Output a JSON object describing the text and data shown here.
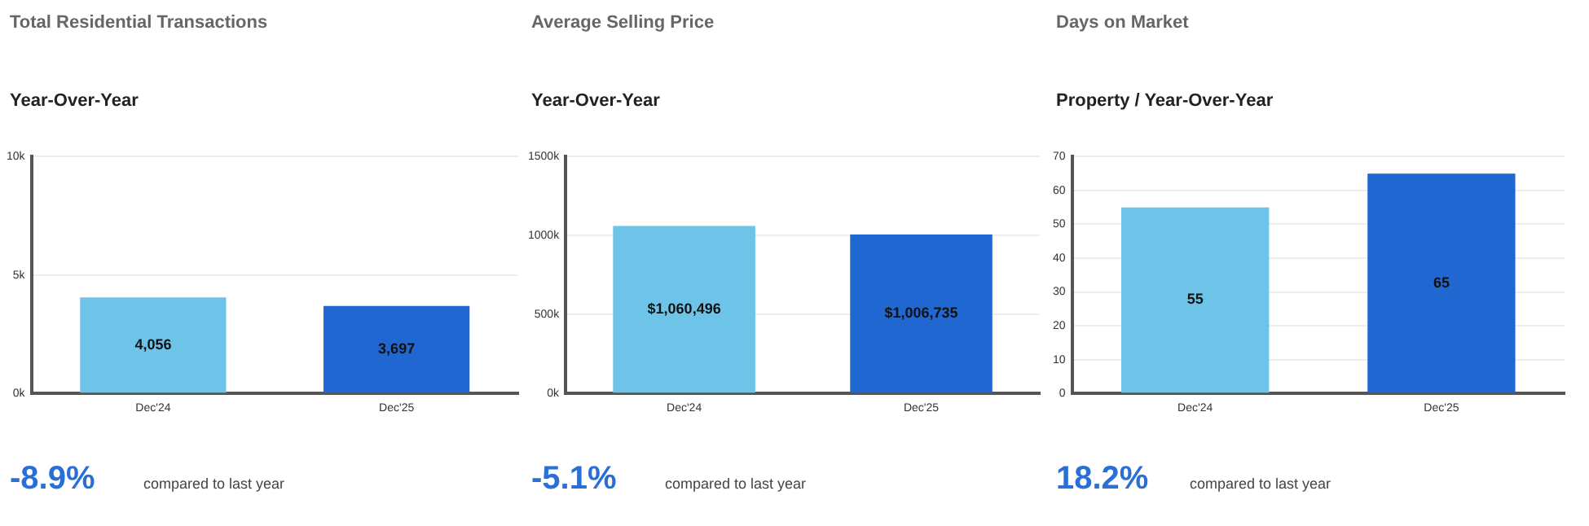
{
  "chart_data": [
    {
      "type": "bar",
      "title": "Total Residential Transactions",
      "subtitle": "Year-Over-Year",
      "categories": [
        "Dec'24",
        "Dec'25"
      ],
      "values": [
        4056,
        3697
      ],
      "colors": [
        "#6ec3e8",
        "#2167d1"
      ],
      "value_labels": [
        "4,056",
        "3,697"
      ],
      "ylim": [
        0,
        10000
      ],
      "yticks": [
        {
          "value": 0,
          "label": "0k"
        },
        {
          "value": 5000,
          "label": "5k"
        },
        {
          "value": 10000,
          "label": "10k"
        }
      ],
      "grid": "y",
      "legend": false,
      "annotations": [
        "-8.9%",
        "compared to last year"
      ]
    },
    {
      "type": "bar",
      "title": "Average Selling Price",
      "subtitle": "Year-Over-Year",
      "categories": [
        "Dec'24",
        "Dec'25"
      ],
      "values": [
        1060496,
        1006735
      ],
      "colors": [
        "#6ec3e8",
        "#2167d1"
      ],
      "value_labels": [
        "$1,060,496",
        "$1,006,735"
      ],
      "ylim": [
        0,
        1500000
      ],
      "yticks": [
        {
          "value": 0,
          "label": "0k"
        },
        {
          "value": 500000,
          "label": "500k"
        },
        {
          "value": 1000000,
          "label": "1000k"
        },
        {
          "value": 1500000,
          "label": "1500k"
        }
      ],
      "grid": "y",
      "legend": false,
      "annotations": [
        "-5.1%",
        "compared to last year"
      ]
    },
    {
      "type": "bar",
      "title": "Days on Market",
      "subtitle": "Property / Year-Over-Year",
      "categories": [
        "Dec'24",
        "Dec'25"
      ],
      "values": [
        55,
        65
      ],
      "colors": [
        "#6ec3e8",
        "#2167d1"
      ],
      "value_labels": [
        "55",
        "65"
      ],
      "ylim": [
        0,
        70
      ],
      "yticks": [
        0,
        10,
        20,
        30,
        40,
        50,
        60,
        70
      ],
      "grid": "y",
      "legend": false,
      "annotations": [
        "18.2%",
        "compared to last year"
      ]
    }
  ]
}
